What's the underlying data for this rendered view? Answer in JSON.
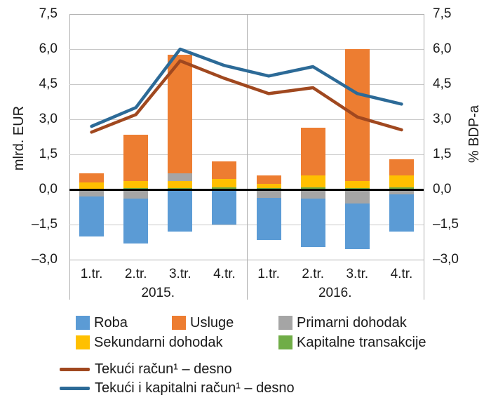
{
  "colors": {
    "bar_blue": "#5B9BD5",
    "bar_orange": "#ED7D31",
    "bar_gray": "#A5A5A5",
    "bar_yellow": "#FFC000",
    "bar_green": "#70AD47",
    "line_brown": "#A0481F",
    "line_blue": "#2C6A97",
    "grid": "#C8C8C8",
    "border": "#B0B0B0",
    "zero_line": "#000000",
    "text": "#1A1A1A"
  },
  "axes": {
    "left": {
      "title": "mlrd. EUR",
      "ticks": [
        "7,5",
        "6,0",
        "4,5",
        "3,0",
        "1,5",
        "0,0",
        "–1,5",
        "–3,0"
      ]
    },
    "right": {
      "title": "% BDP-a",
      "ticks": [
        "7,5",
        "6,0",
        "4,5",
        "3,0",
        "1,5",
        "0,0",
        "–1,5",
        "–3,0"
      ]
    },
    "x": {
      "quarter_labels": [
        "1.tr.",
        "2.tr.",
        "3.tr.",
        "4.tr.",
        "1.tr.",
        "2.tr.",
        "3.tr.",
        "4.tr."
      ],
      "year_labels": [
        "2015.",
        "2016."
      ]
    }
  },
  "chart_data": {
    "type": "bar",
    "subtype": "stacked-bars-with-lines",
    "title": "",
    "xlabel": "",
    "ylabel_left": "mlrd. EUR",
    "ylabel_right": "% BDP-a",
    "ylim": [
      -3.0,
      7.5
    ],
    "ytick_step": 1.5,
    "grid": true,
    "legend_position": "bottom",
    "categories": [
      "2015. 1.tr.",
      "2015. 2.tr.",
      "2015. 3.tr.",
      "2015. 4.tr.",
      "2016. 1.tr.",
      "2016. 2.tr.",
      "2016. 3.tr.",
      "2016. 4.tr."
    ],
    "series": [
      {
        "name": "Roba",
        "color": "#5B9BD5",
        "values": [
          -1.7,
          -1.9,
          -1.8,
          -1.5,
          -1.8,
          -2.05,
          -1.95,
          -1.6
        ]
      },
      {
        "name": "Usluge",
        "color": "#ED7D31",
        "values": [
          0.4,
          2.0,
          5.05,
          0.75,
          0.35,
          2.05,
          5.65,
          0.7
        ]
      },
      {
        "name": "Primarni dohodak",
        "color": "#A5A5A5",
        "values": [
          -0.3,
          -0.4,
          0.35,
          0.0,
          -0.35,
          -0.4,
          -0.6,
          -0.2
        ]
      },
      {
        "name": "Sekundarni dohodak",
        "color": "#FFC000",
        "values": [
          0.3,
          0.3,
          0.3,
          0.35,
          0.2,
          0.5,
          0.3,
          0.5
        ]
      },
      {
        "name": "Kapitalne transakcije",
        "color": "#70AD47",
        "values": [
          0.0,
          0.05,
          0.05,
          0.1,
          0.05,
          0.1,
          0.05,
          0.1
        ]
      }
    ],
    "line_series": [
      {
        "name": "Tekući račun¹ – desno",
        "color": "#A0481F",
        "values": [
          2.45,
          3.2,
          5.5,
          4.75,
          4.1,
          4.35,
          3.1,
          2.55
        ]
      },
      {
        "name": "Tekući i kapitalni račun¹ – desno",
        "color": "#2C6A97",
        "values": [
          2.7,
          3.5,
          6.0,
          5.3,
          4.85,
          5.25,
          4.1,
          3.65
        ]
      }
    ]
  },
  "legend": {
    "items": [
      {
        "label": "Roba",
        "color": "#5B9BD5"
      },
      {
        "label": "Usluge",
        "color": "#ED7D31"
      },
      {
        "label": "Primarni dohodak",
        "color": "#A5A5A5"
      },
      {
        "label": "Sekundarni dohodak",
        "color": "#FFC000"
      },
      {
        "label": "Kapitalne transakcije",
        "color": "#70AD47"
      }
    ],
    "line_items": [
      {
        "label": "Tekući račun¹ – desno",
        "color": "#A0481F"
      },
      {
        "label": "Tekući i kapitalni račun¹ – desno",
        "color": "#2C6A97"
      }
    ]
  }
}
